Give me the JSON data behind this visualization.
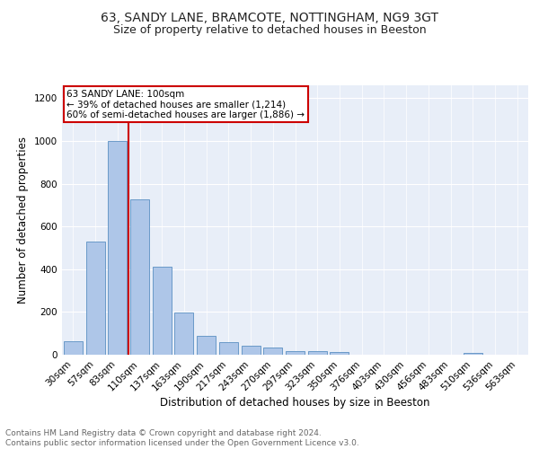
{
  "title_line1": "63, SANDY LANE, BRAMCOTE, NOTTINGHAM, NG9 3GT",
  "title_line2": "Size of property relative to detached houses in Beeston",
  "xlabel": "Distribution of detached houses by size in Beeston",
  "ylabel": "Number of detached properties",
  "categories": [
    "30sqm",
    "57sqm",
    "83sqm",
    "110sqm",
    "137sqm",
    "163sqm",
    "190sqm",
    "217sqm",
    "243sqm",
    "270sqm",
    "297sqm",
    "323sqm",
    "350sqm",
    "376sqm",
    "403sqm",
    "430sqm",
    "456sqm",
    "483sqm",
    "510sqm",
    "536sqm",
    "563sqm"
  ],
  "values": [
    65,
    530,
    1000,
    725,
    410,
    198,
    90,
    60,
    42,
    35,
    18,
    18,
    12,
    0,
    0,
    0,
    0,
    0,
    10,
    0,
    0
  ],
  "bar_color": "#aec6e8",
  "bar_edge_color": "#5a8fc2",
  "annotation_text": "63 SANDY LANE: 100sqm\n← 39% of detached houses are smaller (1,214)\n60% of semi-detached houses are larger (1,886) →",
  "annotation_box_color": "#ffffff",
  "annotation_box_edge_color": "#cc0000",
  "vline_x": 2.5,
  "vline_color": "#cc0000",
  "ylim": [
    0,
    1260
  ],
  "yticks": [
    0,
    200,
    400,
    600,
    800,
    1000,
    1200
  ],
  "background_color": "#e8eef8",
  "footer_text": "Contains HM Land Registry data © Crown copyright and database right 2024.\nContains public sector information licensed under the Open Government Licence v3.0.",
  "title_fontsize": 10,
  "subtitle_fontsize": 9,
  "axis_label_fontsize": 8.5,
  "tick_fontsize": 7.5,
  "annotation_fontsize": 7.5,
  "footer_fontsize": 6.5
}
